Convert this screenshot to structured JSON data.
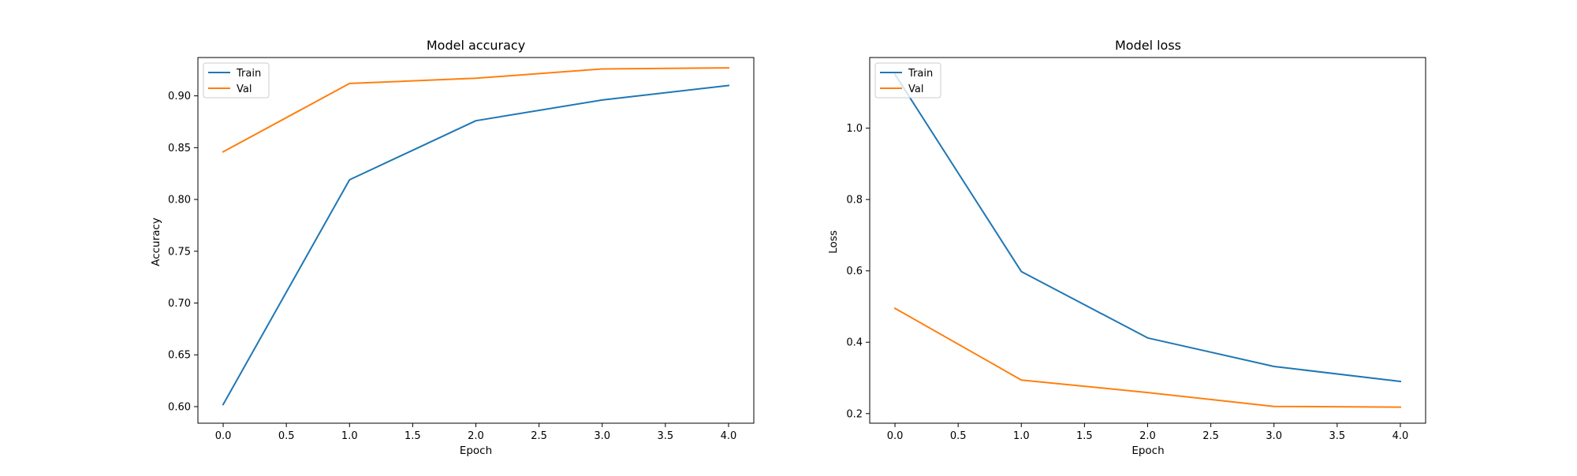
{
  "chart_data": [
    {
      "type": "line",
      "title": "Model accuracy",
      "xlabel": "Epoch",
      "ylabel": "Accuracy",
      "x": [
        0,
        1,
        2,
        3,
        4
      ],
      "xlim": [
        -0.2,
        4.2
      ],
      "ylim": [
        0.584,
        0.937
      ],
      "xticks": [
        0.0,
        0.5,
        1.0,
        1.5,
        2.0,
        2.5,
        3.0,
        3.5,
        4.0
      ],
      "xtick_labels": [
        "0.0",
        "0.5",
        "1.0",
        "1.5",
        "2.0",
        "2.5",
        "3.0",
        "3.5",
        "4.0"
      ],
      "yticks": [
        0.6,
        0.65,
        0.7,
        0.75,
        0.8,
        0.85,
        0.9
      ],
      "ytick_labels": [
        "0.60",
        "0.65",
        "0.70",
        "0.75",
        "0.80",
        "0.85",
        "0.90"
      ],
      "legend_position": "top-left",
      "grid": false,
      "series": [
        {
          "name": "Train",
          "color": "#1f77b4",
          "values": [
            0.602,
            0.819,
            0.876,
            0.896,
            0.91
          ]
        },
        {
          "name": "Val",
          "color": "#ff7f0e",
          "values": [
            0.846,
            0.912,
            0.917,
            0.926,
            0.927
          ]
        }
      ]
    },
    {
      "type": "line",
      "title": "Model loss",
      "xlabel": "Epoch",
      "ylabel": "Loss",
      "x": [
        0,
        1,
        2,
        3,
        4
      ],
      "xlim": [
        -0.2,
        4.2
      ],
      "ylim": [
        0.173,
        1.198
      ],
      "xticks": [
        0.0,
        0.5,
        1.0,
        1.5,
        2.0,
        2.5,
        3.0,
        3.5,
        4.0
      ],
      "xtick_labels": [
        "0.0",
        "0.5",
        "1.0",
        "1.5",
        "2.0",
        "2.5",
        "3.0",
        "3.5",
        "4.0"
      ],
      "yticks": [
        0.2,
        0.4,
        0.6,
        0.8,
        1.0
      ],
      "ytick_labels": [
        "0.2",
        "0.4",
        "0.6",
        "0.8",
        "1.0"
      ],
      "legend_position": "top-left",
      "grid": false,
      "series": [
        {
          "name": "Train",
          "color": "#1f77b4",
          "values": [
            1.151,
            0.598,
            0.412,
            0.332,
            0.29
          ]
        },
        {
          "name": "Val",
          "color": "#ff7f0e",
          "values": [
            0.495,
            0.294,
            0.259,
            0.22,
            0.218
          ]
        }
      ]
    }
  ]
}
